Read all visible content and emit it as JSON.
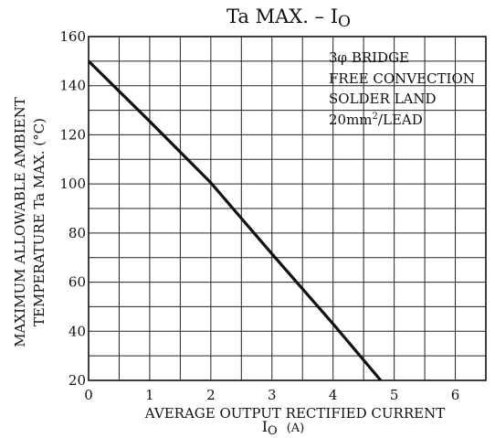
{
  "chart_data": {
    "type": "line",
    "title": "Ta MAX. – I",
    "title_sub": "O",
    "xlabel_line1": "AVERAGE OUTPUT RECTIFIED CURRENT",
    "xlabel_line2_main": "I",
    "xlabel_line2_sub": "O",
    "xlabel_line2_unit": "(A)",
    "ylabel_line1": "MAXIMUM ALLOWABLE AMBIENT",
    "ylabel_line2": "TEMPERATURE  Ta  MAX. (°C)",
    "xlim": [
      0,
      6.5
    ],
    "ylim": [
      20,
      160
    ],
    "x_ticks": [
      0,
      1,
      2,
      3,
      4,
      5,
      6
    ],
    "y_ticks": [
      20,
      40,
      60,
      80,
      100,
      120,
      140,
      160
    ],
    "x_tick_labels": [
      "0",
      "1",
      "2",
      "3",
      "4",
      "5",
      "6"
    ],
    "y_tick_labels": [
      "20",
      "40",
      "60",
      "80",
      "100",
      "120",
      "140",
      "160"
    ],
    "x_grid_step": 0.5,
    "y_grid_step": 10,
    "grid": true,
    "series": [
      {
        "x": [
          0,
          1,
          2,
          3,
          4,
          4.78
        ],
        "y": [
          150,
          125.5,
          100.5,
          71.5,
          43,
          20
        ]
      }
    ],
    "annotations": {
      "line1": "3φ BRIDGE",
      "line2": "FREE CONVECTION",
      "line3": "SOLDER LAND",
      "line4_main": "20mm",
      "line4_sup": "2",
      "line4_rest": "/LEAD"
    }
  }
}
